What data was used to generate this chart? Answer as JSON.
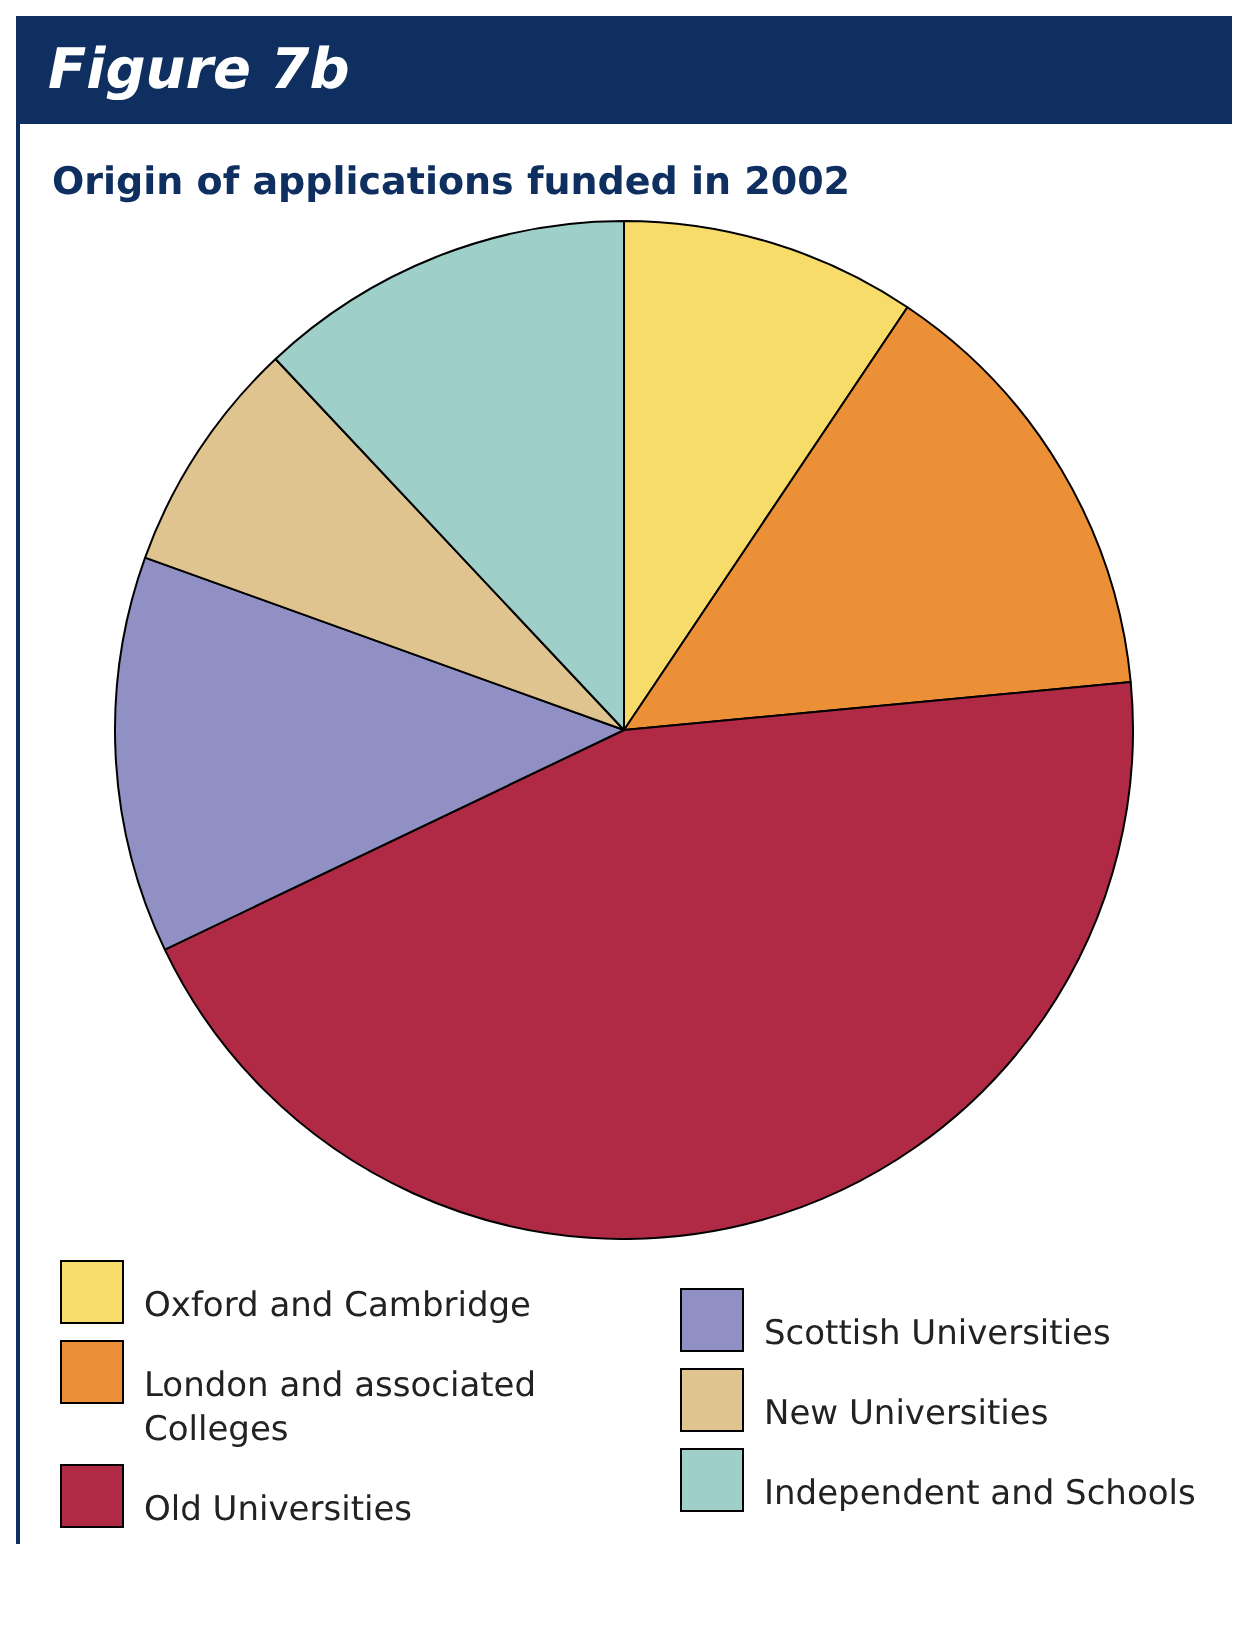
{
  "chart_data": {
    "type": "pie",
    "title": "Figure 7b",
    "subtitle": "Origin of applications funded in 2002",
    "categories": [
      "Oxford and Cambridge",
      "London and associated Colleges",
      "Old Universities",
      "Scottish Universities",
      "New Universities",
      "Independent and Schools"
    ],
    "values": [
      9.4,
      14.1,
      44.4,
      12.6,
      7.5,
      12.0
    ],
    "colors": [
      "#f7dc6a",
      "#eb9037",
      "#b02a45",
      "#9090c4",
      "#dfc490",
      "#9ecfc8"
    ],
    "legend": "bottom"
  }
}
